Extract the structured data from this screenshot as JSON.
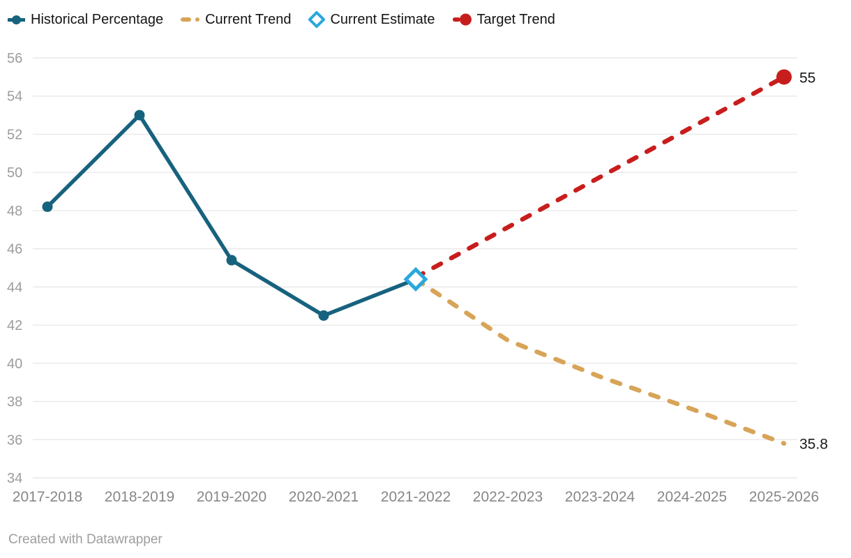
{
  "legend": {
    "items": [
      {
        "label": "Historical Percentage",
        "marker": "line-dot",
        "color": "#17627e"
      },
      {
        "label": "Current Trend",
        "marker": "dashes",
        "color": "#d7a458"
      },
      {
        "label": "Current Estimate",
        "marker": "diamond-open",
        "color": "#29a8dd"
      },
      {
        "label": "Target Trend",
        "marker": "dot-dash",
        "color": "#c71e1d"
      }
    ]
  },
  "chart_data": {
    "type": "line",
    "title": "",
    "categories": [
      "2017-2018",
      "2018-2019",
      "2019-2020",
      "2020-2021",
      "2021-2022",
      "2022-2023",
      "2023-2024",
      "2024-2025",
      "2025-2026"
    ],
    "ylim": [
      34,
      56
    ],
    "ytick_step": 2,
    "y_ticks": [
      34,
      36,
      38,
      40,
      42,
      44,
      46,
      48,
      50,
      52,
      54,
      56
    ],
    "grid": true,
    "legend_position": "top-left",
    "series": [
      {
        "name": "Historical Percentage",
        "color": "#17627e",
        "style": "solid",
        "x": [
          0,
          1,
          2,
          3,
          4
        ],
        "values": [
          48.2,
          53,
          45.4,
          42.5,
          44.4
        ],
        "marker": "circle",
        "marker_x": [
          0,
          1,
          2,
          3
        ]
      },
      {
        "name": "Current Trend",
        "color": "#d7a458",
        "style": "dashed",
        "x": [
          4,
          5,
          6,
          7,
          8
        ],
        "values": [
          44.4,
          41.2,
          39.3,
          37.6,
          35.8
        ],
        "end_label": "35.8"
      },
      {
        "name": "Target Trend",
        "color": "#c71e1d",
        "style": "dashed",
        "x": [
          4,
          8
        ],
        "values": [
          44.5,
          55
        ],
        "marker": "circle-end",
        "end_label": "55"
      },
      {
        "name": "Current Estimate",
        "color": "#29a8dd",
        "style": "marker-only",
        "x": [
          4
        ],
        "values": [
          44.4
        ],
        "marker": "diamond-open"
      }
    ],
    "colors": {
      "grid": "#e9e9e9",
      "y_axis_text": "#9c9c9c",
      "x_axis_text": "#878787",
      "end_label": "#1a1a1a"
    }
  },
  "footer": {
    "text": "Created with Datawrapper"
  }
}
